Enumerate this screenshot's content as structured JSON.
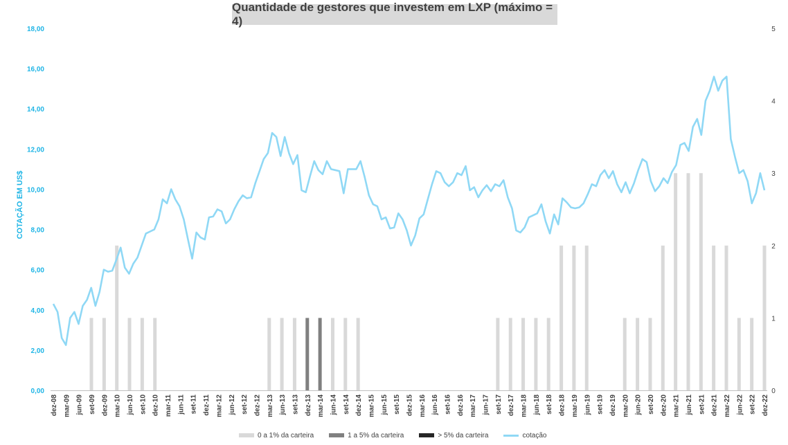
{
  "chart_data": {
    "type": "bar+line",
    "title": "Quantidade de gestores que investem em LXP (máximo = 4)",
    "ylabel_left": "COTAÇÃO EM US$",
    "y_left_lim": [
      0,
      18
    ],
    "y_left_ticks": [
      "0,00",
      "2,00",
      "4,00",
      "6,00",
      "8,00",
      "10,00",
      "12,00",
      "14,00",
      "16,00",
      "18,00"
    ],
    "y_right_lim": [
      0,
      5
    ],
    "y_right_ticks": [
      "0",
      "1",
      "2",
      "3",
      "4",
      "5"
    ],
    "x_tick_labels": [
      "dez-08",
      "mar-09",
      "jun-09",
      "set-09",
      "dez-09",
      "mar-10",
      "jun-10",
      "set-10",
      "dez-10",
      "mar-11",
      "jun-11",
      "set-11",
      "dez-11",
      "mar-12",
      "jun-12",
      "set-12",
      "dez-12",
      "mar-13",
      "jun-13",
      "set-13",
      "dez-13",
      "mar-14",
      "jun-14",
      "set-14",
      "dez-14",
      "mar-15",
      "jun-15",
      "set-15",
      "dez-15",
      "mar-16",
      "jun-16",
      "set-16",
      "dez-16",
      "mar-17",
      "jun-17",
      "set-17",
      "dez-17",
      "mar-18",
      "jun-18",
      "set-18",
      "dez-18",
      "mar-19",
      "jun-19",
      "set-19",
      "dez-19",
      "mar-20",
      "jun-20",
      "set-20",
      "dez-20",
      "mar-21",
      "jun-21",
      "set-21",
      "dez-21",
      "mar-22",
      "jun-22",
      "set-22",
      "dez-22"
    ],
    "legend": [
      "0 a 1% da carteira",
      "1 a 5% da carteira",
      "> 5% da carteira",
      "cotação"
    ],
    "colors": {
      "low": "#d9d9d9",
      "mid": "#808080",
      "high": "#262626",
      "line": "#8fd8f5",
      "axis_left": "#1fb5e6"
    },
    "bars_0_1": [
      0,
      0,
      0,
      1,
      1,
      2,
      1,
      1,
      1,
      0,
      0,
      0,
      0,
      0,
      0,
      0,
      0,
      1,
      1,
      1,
      0,
      0,
      1,
      1,
      1,
      0,
      0,
      0,
      0,
      0,
      0,
      0,
      0,
      0,
      0,
      1,
      1,
      1,
      1,
      1,
      2,
      2,
      2,
      0,
      0,
      1,
      1,
      1,
      2,
      3,
      3,
      3,
      2,
      2,
      1,
      1,
      2
    ],
    "bars_1_5": [
      0,
      0,
      0,
      0,
      0,
      0,
      0,
      0,
      0,
      0,
      0,
      0,
      0,
      0,
      0,
      0,
      0,
      0,
      0,
      0,
      1,
      1,
      0,
      0,
      0,
      0,
      0,
      0,
      0,
      0,
      0,
      0,
      0,
      0,
      0,
      0,
      0,
      0,
      0,
      0,
      0,
      0,
      0,
      0,
      0,
      0,
      0,
      0,
      0,
      0,
      0,
      0,
      0,
      0,
      0,
      0,
      0
    ],
    "bars_gt5": [
      0,
      0,
      0,
      0,
      0,
      0,
      0,
      0,
      0,
      0,
      0,
      0,
      0,
      0,
      0,
      0,
      0,
      0,
      0,
      0,
      0,
      0,
      0,
      0,
      0,
      0,
      0,
      0,
      0,
      0,
      0,
      0,
      0,
      0,
      0,
      0,
      0,
      0,
      0,
      0,
      0,
      0,
      0,
      0,
      0,
      0,
      0,
      0,
      0,
      0,
      0,
      0,
      0,
      0,
      0,
      0,
      0
    ],
    "cotacao_monthly": [
      4.3,
      3.9,
      2.6,
      2.25,
      3.6,
      3.9,
      3.3,
      4.2,
      4.5,
      5.1,
      4.2,
      4.9,
      6.0,
      5.9,
      5.95,
      6.5,
      7.1,
      6.1,
      5.8,
      6.3,
      6.6,
      7.2,
      7.8,
      7.9,
      8.0,
      8.5,
      9.5,
      9.3,
      10.0,
      9.5,
      9.15,
      8.5,
      7.5,
      6.55,
      7.85,
      7.6,
      7.5,
      8.6,
      8.65,
      9.0,
      8.9,
      8.3,
      8.5,
      9.0,
      9.4,
      9.7,
      9.55,
      9.6,
      10.3,
      10.9,
      11.5,
      11.8,
      12.8,
      12.6,
      11.65,
      12.6,
      11.8,
      11.25,
      11.7,
      9.95,
      9.85,
      10.65,
      11.4,
      10.95,
      10.75,
      11.4,
      11.0,
      10.95,
      10.9,
      9.8,
      11.0,
      11.0,
      11.0,
      11.4,
      10.6,
      9.7,
      9.25,
      9.15,
      8.5,
      8.6,
      8.05,
      8.1,
      8.8,
      8.5,
      7.95,
      7.2,
      7.7,
      8.55,
      8.75,
      9.5,
      10.25,
      10.9,
      10.8,
      10.35,
      10.15,
      10.35,
      10.8,
      10.7,
      11.15,
      9.95,
      10.1,
      9.6,
      9.95,
      10.2,
      9.9,
      10.25,
      10.15,
      10.45,
      9.6,
      9.05,
      7.95,
      7.85,
      8.1,
      8.6,
      8.7,
      8.8,
      9.25,
      8.4,
      7.8,
      8.75,
      8.25,
      9.55,
      9.35,
      9.1,
      9.05,
      9.1,
      9.3,
      9.75,
      10.25,
      10.15,
      10.7,
      10.95,
      10.55,
      10.9,
      10.25,
      9.85,
      10.35,
      9.8,
      10.3,
      10.95,
      11.5,
      11.35,
      10.4,
      9.9,
      10.15,
      10.55,
      10.3,
      10.85,
      11.2,
      12.2,
      12.3,
      11.9,
      13.1,
      13.5,
      12.7,
      14.4,
      14.9,
      15.6,
      14.9,
      15.4,
      15.6,
      12.5,
      11.6,
      10.8,
      10.95,
      10.4,
      9.3,
      9.8,
      10.8,
      9.95
    ]
  },
  "legend_labels": {
    "low": "0 a 1% da carteira",
    "mid": "1 a 5% da carteira",
    "high": "> 5% da carteira",
    "line": "cotação"
  }
}
